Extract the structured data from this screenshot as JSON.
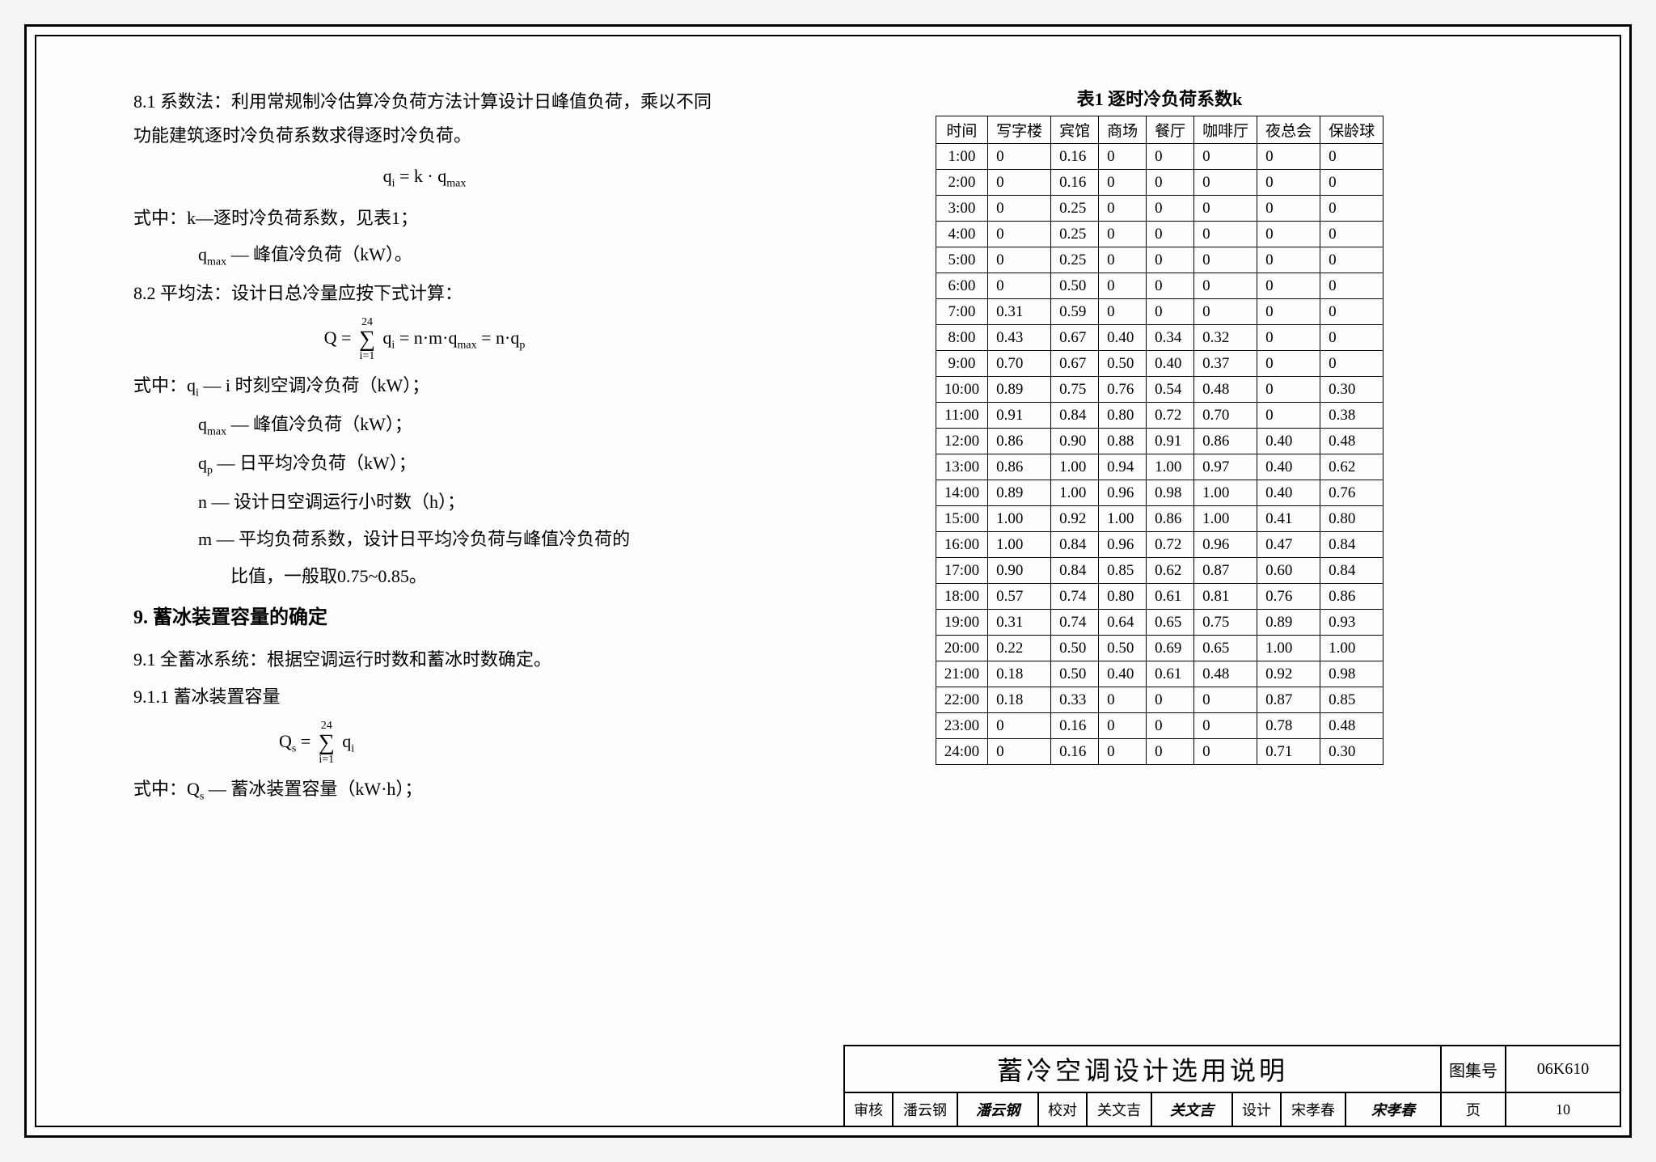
{
  "left": {
    "p81": "8.1 系数法：利用常规制冷估算冷负荷方法计算设计日峰值负荷，乘以不同功能建筑逐时冷负荷系数求得逐时冷负荷。",
    "f1": "qᵢ = k · q_max",
    "p81a": "式中：k—逐时冷负荷系数，见表1；",
    "p81b": "q_max — 峰值冷负荷（kW）。",
    "p82": "8.2 平均法：设计日总冷量应按下式计算：",
    "f2_left": "Q =",
    "f2_sum_top": "24",
    "f2_sum_bot": "i=1",
    "f2_right": " qᵢ = n·m·q_max = n·qₚ",
    "p82a": "式中：qᵢ — i 时刻空调冷负荷（kW）；",
    "p82b": "q_max — 峰值冷负荷（kW）；",
    "p82c": "qₚ — 日平均冷负荷（kW）；",
    "p82d": "n — 设计日空调运行小时数（h）；",
    "p82e": "m — 平均负荷系数，设计日平均冷负荷与峰值冷负荷的",
    "p82f": "比值，一般取0.75~0.85。",
    "s9": "9. 蓄冰装置容量的确定",
    "p91": "9.1 全蓄冰系统：根据空调运行时数和蓄冰时数确定。",
    "p911": "9.1.1 蓄冰装置容量",
    "f3_left": "Qₛ =",
    "f3_sum_top": "24",
    "f3_sum_bot": "i=1",
    "f3_right": " qᵢ",
    "p91a": "式中：Qₛ — 蓄冰装置容量（kW·h）；"
  },
  "table": {
    "title": "表1 逐时冷负荷系数k",
    "columns": [
      "时间",
      "写字楼",
      "宾馆",
      "商场",
      "餐厅",
      "咖啡厅",
      "夜总会",
      "保龄球"
    ],
    "rows": [
      [
        "1:00",
        "0",
        "0.16",
        "0",
        "0",
        "0",
        "0",
        "0"
      ],
      [
        "2:00",
        "0",
        "0.16",
        "0",
        "0",
        "0",
        "0",
        "0"
      ],
      [
        "3:00",
        "0",
        "0.25",
        "0",
        "0",
        "0",
        "0",
        "0"
      ],
      [
        "4:00",
        "0",
        "0.25",
        "0",
        "0",
        "0",
        "0",
        "0"
      ],
      [
        "5:00",
        "0",
        "0.25",
        "0",
        "0",
        "0",
        "0",
        "0"
      ],
      [
        "6:00",
        "0",
        "0.50",
        "0",
        "0",
        "0",
        "0",
        "0"
      ],
      [
        "7:00",
        "0.31",
        "0.59",
        "0",
        "0",
        "0",
        "0",
        "0"
      ],
      [
        "8:00",
        "0.43",
        "0.67",
        "0.40",
        "0.34",
        "0.32",
        "0",
        "0"
      ],
      [
        "9:00",
        "0.70",
        "0.67",
        "0.50",
        "0.40",
        "0.37",
        "0",
        "0"
      ],
      [
        "10:00",
        "0.89",
        "0.75",
        "0.76",
        "0.54",
        "0.48",
        "0",
        "0.30"
      ],
      [
        "11:00",
        "0.91",
        "0.84",
        "0.80",
        "0.72",
        "0.70",
        "0",
        "0.38"
      ],
      [
        "12:00",
        "0.86",
        "0.90",
        "0.88",
        "0.91",
        "0.86",
        "0.40",
        "0.48"
      ],
      [
        "13:00",
        "0.86",
        "1.00",
        "0.94",
        "1.00",
        "0.97",
        "0.40",
        "0.62"
      ],
      [
        "14:00",
        "0.89",
        "1.00",
        "0.96",
        "0.98",
        "1.00",
        "0.40",
        "0.76"
      ],
      [
        "15:00",
        "1.00",
        "0.92",
        "1.00",
        "0.86",
        "1.00",
        "0.41",
        "0.80"
      ],
      [
        "16:00",
        "1.00",
        "0.84",
        "0.96",
        "0.72",
        "0.96",
        "0.47",
        "0.84"
      ],
      [
        "17:00",
        "0.90",
        "0.84",
        "0.85",
        "0.62",
        "0.87",
        "0.60",
        "0.84"
      ],
      [
        "18:00",
        "0.57",
        "0.74",
        "0.80",
        "0.61",
        "0.81",
        "0.76",
        "0.86"
      ],
      [
        "19:00",
        "0.31",
        "0.74",
        "0.64",
        "0.65",
        "0.75",
        "0.89",
        "0.93"
      ],
      [
        "20:00",
        "0.22",
        "0.50",
        "0.50",
        "0.69",
        "0.65",
        "1.00",
        "1.00"
      ],
      [
        "21:00",
        "0.18",
        "0.50",
        "0.40",
        "0.61",
        "0.48",
        "0.92",
        "0.98"
      ],
      [
        "22:00",
        "0.18",
        "0.33",
        "0",
        "0",
        "0",
        "0.87",
        "0.85"
      ],
      [
        "23:00",
        "0",
        "0.16",
        "0",
        "0",
        "0",
        "0.78",
        "0.48"
      ],
      [
        "24:00",
        "0",
        "0.16",
        "0",
        "0",
        "0",
        "0.71",
        "0.30"
      ]
    ]
  },
  "titleblock": {
    "main_title": "蓄冷空调设计选用说明",
    "atlas_label": "图集号",
    "atlas_no": "06K610",
    "shenhe": "审核",
    "shenhe_name": "潘云钢",
    "shenhe_sig": "潘云钢",
    "jiaodui": "校对",
    "jiaodui_name": "关文吉",
    "jiaodui_sig": "关文吉",
    "sheji": "设计",
    "sheji_name": "宋孝春",
    "sheji_sig": "宋孝春",
    "page_label": "页",
    "page_no": "10"
  }
}
